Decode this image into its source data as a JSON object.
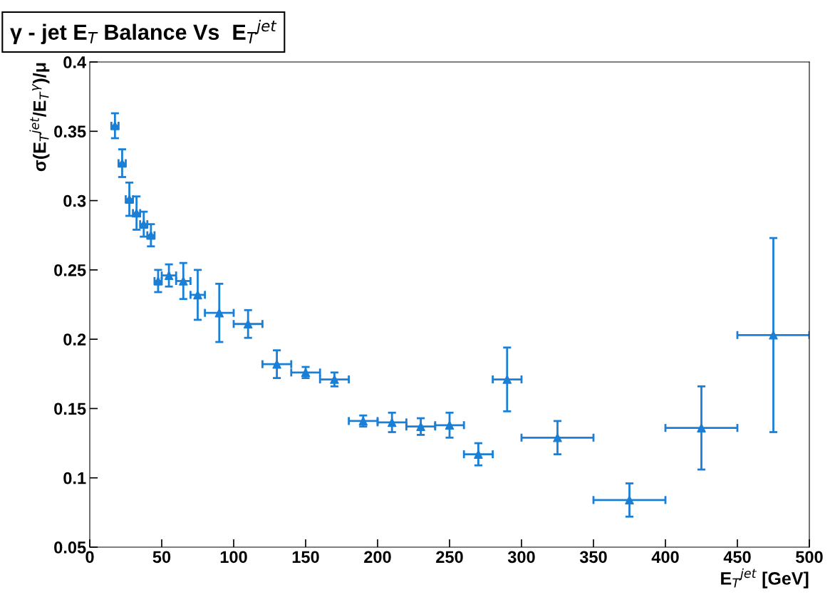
{
  "chart_data": {
    "type": "scatter",
    "title": "γ - jet E$_{T}$ Balance Vs  E$_{T}$$^{jet}$",
    "xlabel": "E$_{T}$$^{jet}$ [GeV]",
    "ylabel": "σ(E$_{T}$$^{jet}$/E$_{T}$$^{γ}$)/μ",
    "x": [
      17.5,
      22.5,
      27.5,
      32.5,
      37.5,
      42.5,
      47.5,
      55,
      65,
      75,
      90,
      110,
      130,
      150,
      170,
      190,
      210,
      230,
      250,
      270,
      290,
      325,
      375,
      425,
      475
    ],
    "series": [
      {
        "color": "#1a7fd6",
        "values": [
          0.354,
          0.327,
          0.301,
          0.291,
          0.283,
          0.275,
          0.242,
          0.246,
          0.242,
          0.232,
          0.219,
          0.211,
          0.182,
          0.176,
          0.171,
          0.141,
          0.14,
          0.137,
          0.138,
          0.117,
          0.171,
          0.129,
          0.084,
          0.136,
          0.203
        ],
        "errors": [
          0.009,
          0.01,
          0.012,
          0.012,
          0.009,
          0.008,
          0.008,
          0.008,
          0.013,
          0.018,
          0.021,
          0.01,
          0.01,
          0.004,
          0.005,
          0.004,
          0.007,
          0.006,
          0.009,
          0.008,
          0.023,
          0.012,
          0.012,
          0.03,
          0.07
        ],
        "xerrors": [
          2.5,
          2.5,
          2.5,
          2.5,
          2.5,
          2.5,
          2.5,
          5,
          5,
          5,
          10,
          10,
          10,
          10,
          10,
          10,
          10,
          10,
          10,
          10,
          10,
          25,
          25,
          25,
          25
        ]
      }
    ],
    "marker": "triangle",
    "xlim": [
      0,
      500
    ],
    "xticks": [
      0,
      50,
      100,
      150,
      200,
      250,
      300,
      350,
      400,
      450,
      500
    ],
    "ylim": [
      0.05,
      0.4
    ],
    "yticks": [
      0.05,
      0.1,
      0.15,
      0.2,
      0.25,
      0.3,
      0.35,
      0.4
    ]
  }
}
